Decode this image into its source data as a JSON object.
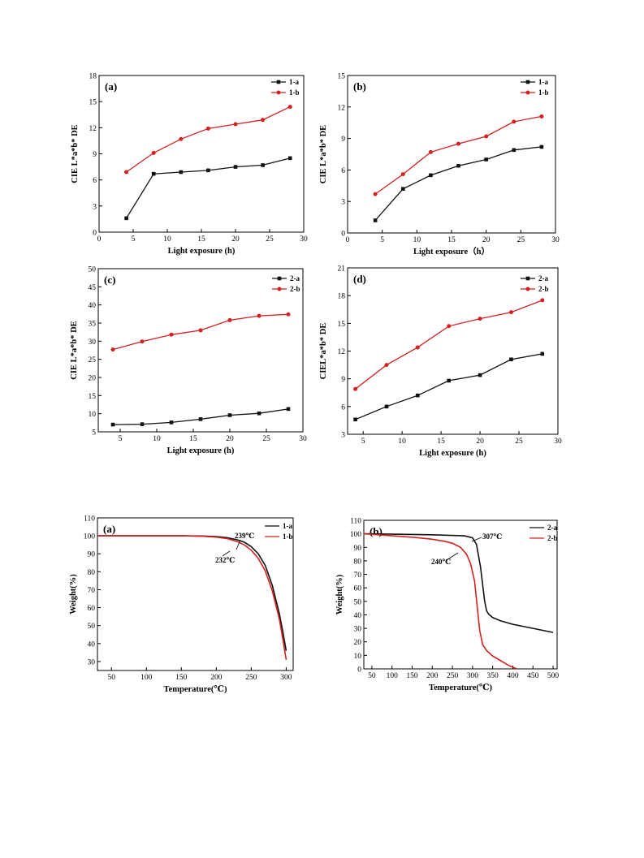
{
  "colors": {
    "black_series": "#111111",
    "red_series": "#d42020",
    "axis": "#000000"
  },
  "chart_data": [
    {
      "type": "line",
      "panel_label": "(a)",
      "xlabel": "Light exposure (h)",
      "ylabel": "CIE L*a*b* DE",
      "xlim": [
        0,
        30
      ],
      "ylim": [
        0,
        18
      ],
      "xticks": [
        "0",
        "5",
        "10",
        "15",
        "20",
        "25",
        "30"
      ],
      "yticks": [
        "0",
        "3",
        "6",
        "9",
        "12",
        "15",
        "18"
      ],
      "grid": false,
      "legend_position": "top-right",
      "x": [
        4,
        8,
        12,
        16,
        20,
        24,
        28
      ],
      "series": [
        {
          "name": "1-a",
          "color": "#111111",
          "marker": "square",
          "values": [
            1.6,
            6.7,
            6.9,
            7.1,
            7.5,
            7.7,
            8.5
          ]
        },
        {
          "name": "1-b",
          "color": "#d42020",
          "marker": "circle",
          "values": [
            6.9,
            9.1,
            10.7,
            11.9,
            12.4,
            12.9,
            14.4
          ]
        }
      ]
    },
    {
      "type": "line",
      "panel_label": "(b)",
      "xlabel": "Light exposure（h）",
      "ylabel": "CIE L*a*b* DE",
      "xlim": [
        0,
        30
      ],
      "ylim": [
        0,
        15
      ],
      "xticks": [
        "0",
        "5",
        "10",
        "15",
        "20",
        "25",
        "30"
      ],
      "yticks": [
        "0",
        "3",
        "6",
        "9",
        "12",
        "15"
      ],
      "grid": false,
      "legend_position": "top-right",
      "x": [
        4,
        8,
        12,
        16,
        20,
        24,
        28
      ],
      "series": [
        {
          "name": "1-a",
          "color": "#111111",
          "marker": "square",
          "values": [
            1.2,
            4.2,
            5.5,
            6.4,
            7.0,
            7.9,
            8.2
          ]
        },
        {
          "name": "1-b",
          "color": "#d42020",
          "marker": "circle",
          "values": [
            3.7,
            5.6,
            7.7,
            8.5,
            9.2,
            10.6,
            11.1
          ]
        }
      ]
    },
    {
      "type": "line",
      "panel_label": "(c)",
      "xlabel": "Light exposure (h)",
      "ylabel": "CIE L*a*b* DE",
      "xlim": [
        2,
        30
      ],
      "ylim": [
        5,
        50
      ],
      "xticks": [
        "5",
        "10",
        "15",
        "20",
        "25",
        "30"
      ],
      "yticks": [
        "5",
        "10",
        "15",
        "20",
        "25",
        "30",
        "35",
        "40",
        "45",
        "50"
      ],
      "grid": false,
      "legend_position": "top-right",
      "x": [
        4,
        8,
        12,
        16,
        20,
        24,
        28
      ],
      "series": [
        {
          "name": "2-a",
          "color": "#111111",
          "marker": "square",
          "values": [
            7.0,
            7.1,
            7.6,
            8.5,
            9.6,
            10.1,
            11.3
          ]
        },
        {
          "name": "2-b",
          "color": "#d42020",
          "marker": "circle",
          "values": [
            27.7,
            29.9,
            31.8,
            33.0,
            35.8,
            37.0,
            37.4
          ]
        }
      ]
    },
    {
      "type": "line",
      "panel_label": "(d)",
      "xlabel": "Light exposure (h)",
      "ylabel": "CIEL*a*b* DE",
      "xlim": [
        3,
        30
      ],
      "ylim": [
        3,
        21
      ],
      "xticks": [
        "5",
        "10",
        "15",
        "20",
        "25",
        "30"
      ],
      "yticks": [
        "3",
        "6",
        "9",
        "12",
        "15",
        "18",
        "21"
      ],
      "grid": false,
      "legend_position": "top-right",
      "x": [
        4,
        8,
        12,
        16,
        20,
        24,
        28
      ],
      "series": [
        {
          "name": "2-a",
          "color": "#111111",
          "marker": "square",
          "values": [
            4.6,
            6.0,
            7.2,
            8.8,
            9.4,
            11.1,
            11.7
          ]
        },
        {
          "name": "2-b",
          "color": "#d42020",
          "marker": "circle",
          "values": [
            7.9,
            10.5,
            12.4,
            14.7,
            15.5,
            16.2,
            17.5
          ]
        }
      ]
    },
    {
      "type": "line",
      "panel_label": "(a)",
      "xlabel": "Temperature(℃)",
      "ylabel": "Weight(%)",
      "xlim": [
        30,
        310
      ],
      "ylim": [
        25,
        110
      ],
      "xticks": [
        "50",
        "100",
        "150",
        "200",
        "250",
        "300"
      ],
      "yticks": [
        "30",
        "40",
        "50",
        "60",
        "70",
        "80",
        "90",
        "100",
        "110"
      ],
      "grid": false,
      "legend_position": "top-right",
      "annotations": [
        "239℃",
        "232℃"
      ],
      "series": [
        {
          "name": "1-a",
          "color": "#111111",
          "x": [
            30,
            100,
            150,
            180,
            200,
            215,
            230,
            240,
            250,
            260,
            270,
            280,
            290,
            295,
            300
          ],
          "values": [
            100,
            100,
            100,
            99.9,
            99.6,
            99,
            97.8,
            96.5,
            94,
            90,
            83.5,
            72.5,
            57,
            47,
            36
          ]
        },
        {
          "name": "1-b",
          "color": "#d42020",
          "x": [
            30,
            100,
            150,
            180,
            200,
            215,
            230,
            240,
            250,
            260,
            270,
            280,
            290,
            295,
            300
          ],
          "values": [
            100,
            100,
            100,
            99.8,
            99.3,
            98.5,
            96.8,
            95,
            92,
            87.5,
            80.5,
            69.5,
            54,
            43,
            31
          ]
        }
      ]
    },
    {
      "type": "line",
      "panel_label": "(b)",
      "xlabel": "Temperature(℃)",
      "ylabel": "Weight(%)",
      "xlim": [
        30,
        510
      ],
      "ylim": [
        0,
        110
      ],
      "xticks": [
        "50",
        "100",
        "150",
        "200",
        "250",
        "300",
        "350",
        "400",
        "450",
        "500"
      ],
      "yticks": [
        "0",
        "10",
        "20",
        "30",
        "40",
        "50",
        "60",
        "70",
        "80",
        "90",
        "100",
        "110"
      ],
      "grid": false,
      "legend_position": "top-right",
      "annotations": [
        "307℃",
        "240℃"
      ],
      "series": [
        {
          "name": "2-a",
          "color": "#111111",
          "x": [
            30,
            100,
            200,
            280,
            300,
            310,
            320,
            330,
            335,
            340,
            350,
            370,
            400,
            450,
            500
          ],
          "values": [
            100,
            99.7,
            99.3,
            98.5,
            97,
            92,
            75,
            50,
            43,
            40.5,
            38,
            35.5,
            33,
            30,
            27
          ]
        },
        {
          "name": "2-b",
          "color": "#d42020",
          "x": [
            30,
            100,
            150,
            200,
            230,
            250,
            270,
            285,
            295,
            305,
            312,
            318,
            325,
            335,
            350,
            370,
            390,
            410
          ],
          "values": [
            100,
            98.5,
            97.5,
            96,
            94.5,
            93,
            90,
            85,
            78,
            65,
            45,
            28,
            18,
            13.5,
            9.5,
            6,
            2.5,
            0
          ]
        }
      ]
    }
  ]
}
